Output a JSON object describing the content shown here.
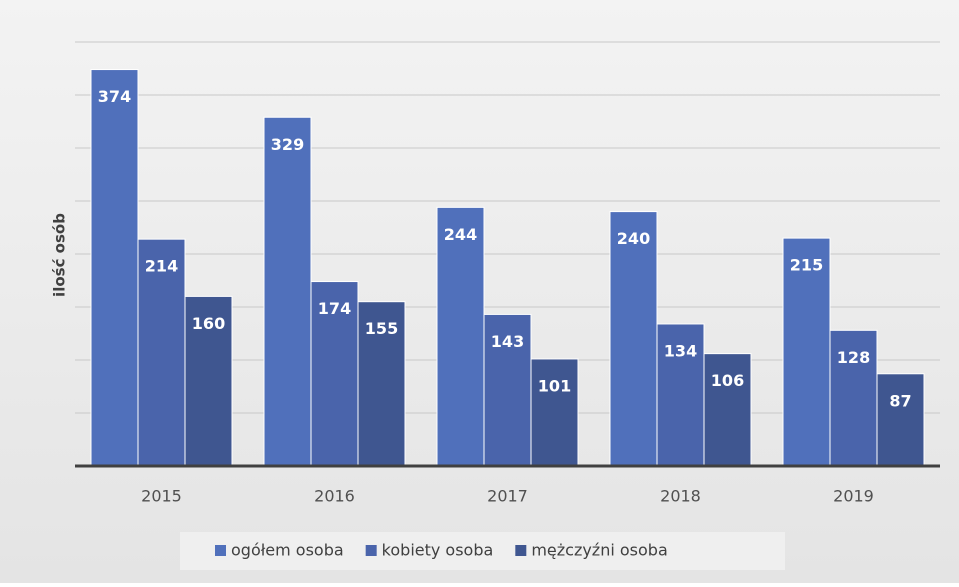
{
  "chart_data": {
    "type": "bar",
    "y_label": "ilość osób",
    "categories": [
      "2015",
      "2016",
      "2017",
      "2018",
      "2019"
    ],
    "series": [
      {
        "name": "ogółem osoba",
        "color": "#5070bb",
        "values": [
          374,
          329,
          244,
          240,
          215
        ]
      },
      {
        "name": "kobiety osoba",
        "color": "#4a64ab",
        "values": [
          214,
          174,
          143,
          134,
          128
        ]
      },
      {
        "name": "mężczyźni osoba",
        "color": "#3f5690",
        "values": [
          160,
          155,
          101,
          106,
          87
        ]
      }
    ],
    "ylim": [
      0,
      400
    ],
    "yticks": [
      0,
      50,
      100,
      150,
      200,
      250,
      300,
      350,
      400
    ],
    "grid": true
  }
}
